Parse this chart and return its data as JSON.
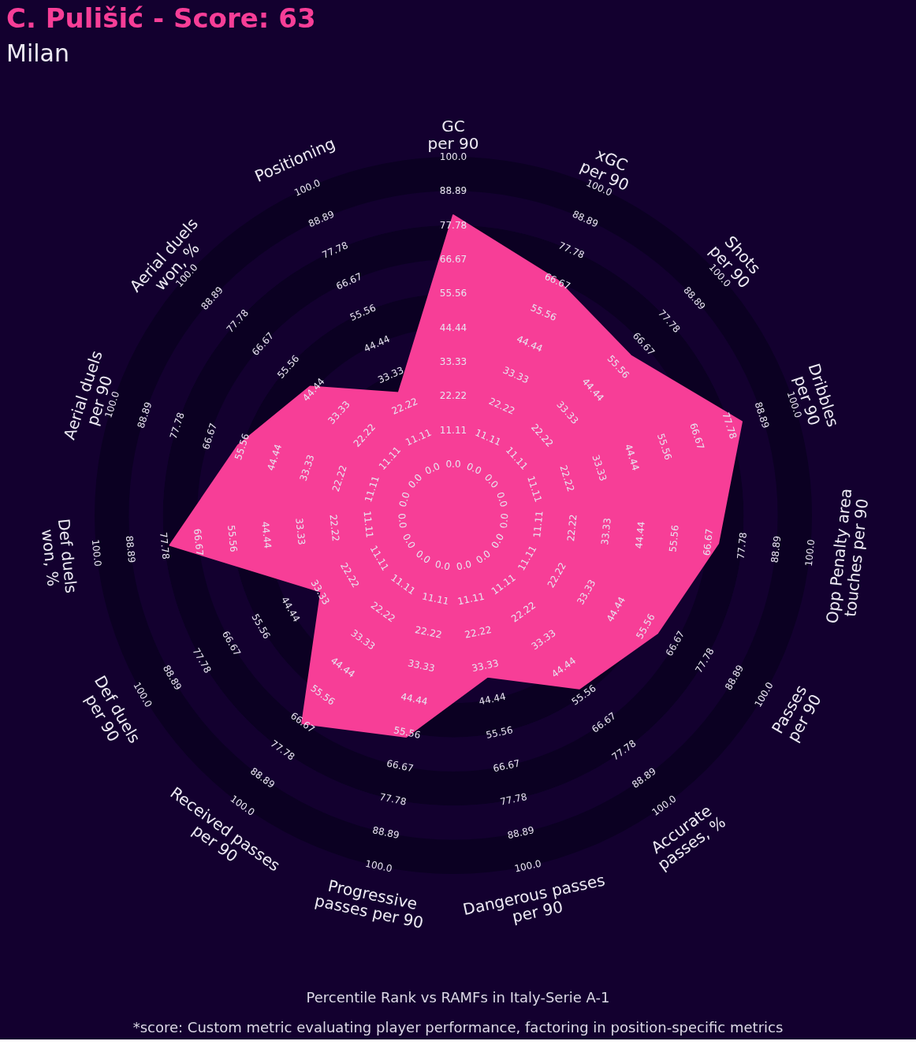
{
  "chart_data": {
    "type": "radar",
    "title": "C. Pulišić - Score: 63",
    "subtitle": "Milan",
    "categories": [
      "GC\nper 90",
      "xGC\nper 90",
      "Shots\nper 90",
      "Dribbles\nper 90",
      "Opp Penalty area\ntouches per 90",
      "Passes\nper 90",
      "Accurate\npasses, %",
      "Dangerous passes\nper 90",
      "Progressive\npasses per 90",
      "Received passes\nper 90",
      "Def duels\nper 90",
      "Def duels\nwon, %",
      "Aerial duels\nper 90",
      "Aerial duels\nwon, %",
      "Positioning"
    ],
    "series": [
      {
        "color": "#f73e97",
        "values": [
          81,
          67,
          61,
          82,
          70,
          60,
          53,
          37,
          57,
          67,
          33,
          76,
          57,
          46,
          27
        ]
      }
    ],
    "ylim": [
      -16.67,
      100
    ],
    "yticks": [
      {
        "value": 0,
        "label": "0.0"
      },
      {
        "value": 11.11,
        "label": "11.11"
      },
      {
        "value": 22.22,
        "label": "22.22"
      },
      {
        "value": 33.33,
        "label": "33.33"
      },
      {
        "value": 44.44,
        "label": "44.44"
      },
      {
        "value": 55.56,
        "label": "55.56"
      },
      {
        "value": 66.67,
        "label": "66.67"
      },
      {
        "value": 77.78,
        "label": "77.78"
      },
      {
        "value": 88.89,
        "label": "88.89"
      },
      {
        "value": 100,
        "label": "100.0"
      }
    ],
    "grid": true,
    "annotations": [
      "Percentile Rank vs RAMFs in Italy-Serie A-1",
      "*score: Custom metric evaluating player performance, factoring in position-specific metrics"
    ]
  }
}
